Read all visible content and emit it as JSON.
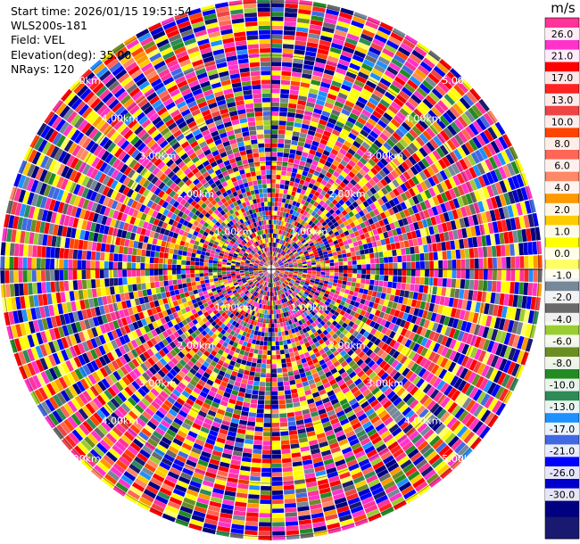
{
  "info": {
    "start_time": "Start time: 2026/01/15 19:51:54",
    "site": "WLS200s-181",
    "field": "Field: VEL",
    "elevation": "Elevation(deg): 35.00",
    "nrays": "NRays: 120"
  },
  "chart_data": {
    "type": "heatmap",
    "subtype": "polar-ppi",
    "field": "VEL",
    "n_rays": 120,
    "range_rings_km": [
      1,
      2,
      3,
      4,
      5
    ],
    "ring_labels": [
      "1.00km",
      "2.00km",
      "3.00km",
      "4.00km",
      "5.00km"
    ],
    "colorbar": {
      "unit": "m/s",
      "ticks": [
        "26.0",
        "21.0",
        "17.0",
        "13.0",
        "10.0",
        "8.0",
        "6.0",
        "4.0",
        "2.0",
        "1.0",
        "0.0",
        "-1.0",
        "-2.0",
        "-4.0",
        "-6.0",
        "-8.0",
        "-10.0",
        "-13.0",
        "-17.0",
        "-21.0",
        "-26.0",
        "-30.0"
      ],
      "colors": [
        "#ff3399",
        "#ff33cc",
        "#ff0000",
        "#ff2222",
        "#ee4444",
        "#ff4400",
        "#ff6655",
        "#ff8866",
        "#ff9900",
        "#ffcc00",
        "#ffff00",
        "#ffff66",
        "#778899",
        "#696969",
        "#9acd32",
        "#6b8e23",
        "#228b22",
        "#2e8b57",
        "#1e90ff",
        "#4169e1",
        "#0000ff",
        "#0000cd",
        "#000080",
        "#191970"
      ]
    }
  }
}
